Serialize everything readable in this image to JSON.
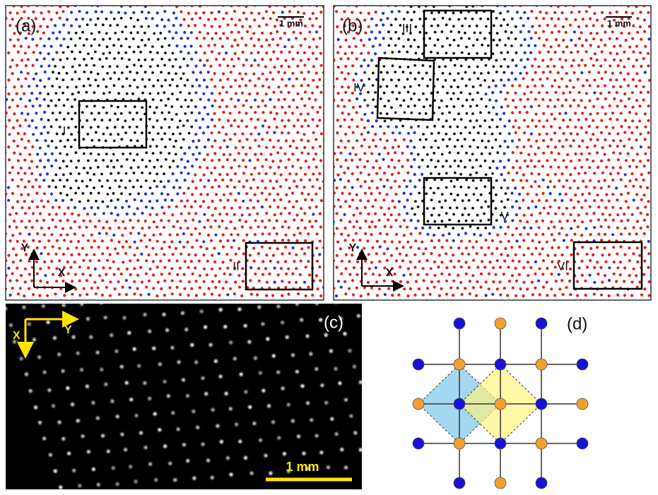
{
  "panels": [
    {
      "label": "(a)",
      "scale_bar": "1 mm",
      "regions": [
        "I",
        "II"
      ],
      "axes": {
        "y": "Y",
        "x": "X"
      }
    },
    {
      "label": "(b)",
      "scale_bar": "1 mm",
      "regions": [
        "III",
        "IV",
        "V",
        "VI"
      ],
      "axes": {
        "y": "Y",
        "x": "X"
      }
    },
    {
      "label": "(c)",
      "scale_bar": "1 mm",
      "axes": {
        "x": "X",
        "y": "Y"
      }
    },
    {
      "label": "(d)"
    }
  ]
}
